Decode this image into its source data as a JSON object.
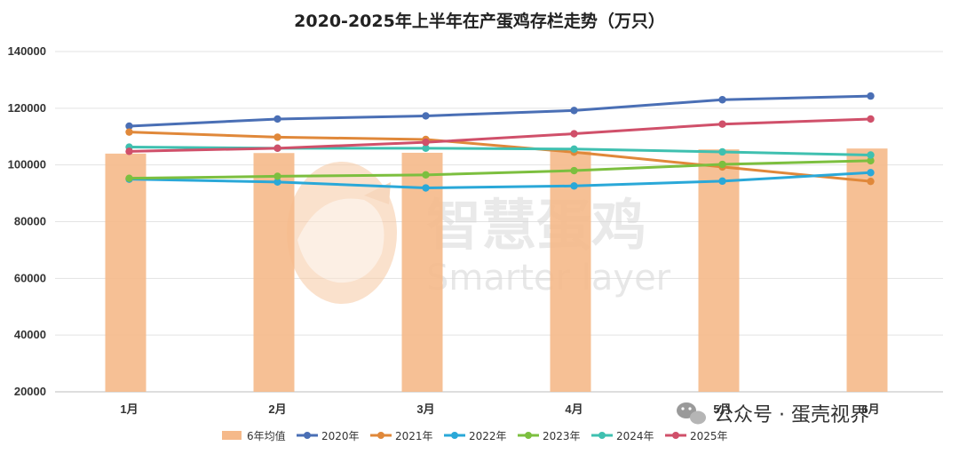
{
  "chart_data": {
    "type": "bar+line",
    "title": "2020-2025年上半年在产蛋鸡存栏走势（万只）",
    "categories": [
      "1月",
      "2月",
      "3月",
      "4月",
      "5月",
      "6月"
    ],
    "ylim": [
      20000,
      140000
    ],
    "yticks": [
      20000,
      40000,
      60000,
      80000,
      100000,
      120000,
      140000
    ],
    "grid": true,
    "legend_position": "bottom",
    "bar_series": {
      "name": "6年均值",
      "color": "#f5b98a",
      "values": [
        104000,
        104200,
        104300,
        104800,
        105500,
        105800
      ]
    },
    "series": [
      {
        "name": "2020年",
        "color": "#4a6fb5",
        "values": [
          113700,
          116200,
          117300,
          119200,
          123000,
          124300
        ]
      },
      {
        "name": "2021年",
        "color": "#e0883a",
        "values": [
          111600,
          109800,
          109000,
          104500,
          99300,
          94200
        ]
      },
      {
        "name": "2022年",
        "color": "#2aa8d8",
        "values": [
          95000,
          94000,
          91900,
          92600,
          94300,
          97300
        ]
      },
      {
        "name": "2023年",
        "color": "#7cbf3f",
        "values": [
          95300,
          96000,
          96500,
          98000,
          100200,
          101500
        ]
      },
      {
        "name": "2024年",
        "color": "#3fc0b0",
        "values": [
          106300,
          105900,
          105900,
          105600,
          104600,
          103500
        ]
      },
      {
        "name": "2025年",
        "color": "#d0506a",
        "values": [
          104800,
          105900,
          108000,
          111000,
          114400,
          116200
        ]
      }
    ]
  },
  "watermark": {
    "cn": "智慧蛋鸡",
    "en": "Smarter layer",
    "logo_icon": "egg-logo-icon"
  },
  "wechat": {
    "icon": "wechat-icon",
    "label": "公众号 · 蛋壳视界"
  }
}
